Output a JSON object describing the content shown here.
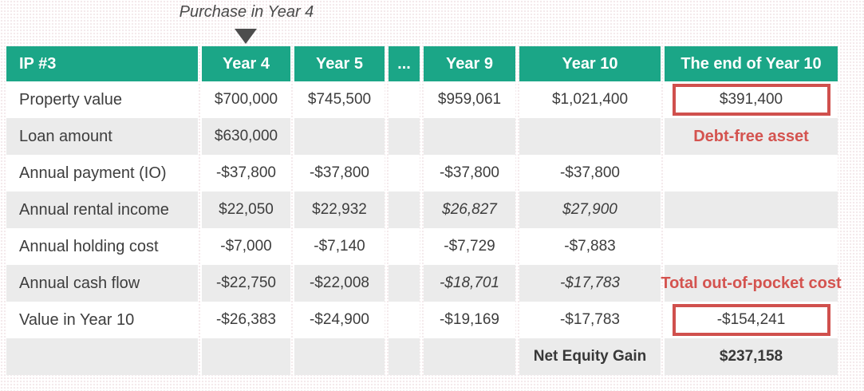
{
  "annotation": {
    "purchase_label": "Purchase in Year 4"
  },
  "callouts": {
    "debt_free_asset": "Debt-free asset",
    "total_out_of_pocket": "Total out-of-pocket cost"
  },
  "table": {
    "header": {
      "col0": "IP #3",
      "col1": "Year 4",
      "col2": "Year 5",
      "col3": "...",
      "col4": "Year 9",
      "col5": "Year 10",
      "col6": "The end of Year 10"
    },
    "rows": [
      {
        "label": "Property value",
        "y4": "$700,000",
        "y5": "$745,500",
        "dots": "",
        "y9": "$959,061",
        "y10": "$1,021,400",
        "end": "$391,400"
      },
      {
        "label": "Loan amount",
        "y4": "$630,000",
        "y5": "",
        "dots": "",
        "y9": "",
        "y10": "",
        "end": ""
      },
      {
        "label": "Annual payment (IO)",
        "y4": "-$37,800",
        "y5": "-$37,800",
        "dots": "",
        "y9": "-$37,800",
        "y10": "-$37,800",
        "end": ""
      },
      {
        "label": "Annual rental income",
        "y4": "$22,050",
        "y5": "$22,932",
        "dots": "",
        "y9": "$26,827",
        "y10": "$27,900",
        "end": ""
      },
      {
        "label": "Annual holding cost",
        "y4": "-$7,000",
        "y5": "-$7,140",
        "dots": "",
        "y9": "-$7,729",
        "y10": "-$7,883",
        "end": ""
      },
      {
        "label": "Annual cash flow",
        "y4": "-$22,750",
        "y5": "-$22,008",
        "dots": "",
        "y9": "-$18,701",
        "y10": "-$17,783",
        "end": ""
      },
      {
        "label": "Value in Year 10",
        "y4": "-$26,383",
        "y5": "-$24,900",
        "dots": "",
        "y9": "-$19,169",
        "y10": "-$17,783",
        "end": "-$154,241"
      },
      {
        "label": "",
        "y4": "",
        "y5": "",
        "dots": "",
        "y9": "",
        "y10": "Net Equity Gain",
        "end": "$237,158"
      }
    ]
  },
  "colors": {
    "header_teal": "#1ba687",
    "row_alt_gray": "#ebebeb",
    "accent_red": "#d0504d",
    "text_dark": "#3d3d3d"
  },
  "chart_data": {
    "type": "table",
    "title": "IP #3",
    "columns": [
      "IP #3",
      "Year 4",
      "Year 5",
      "...",
      "Year 9",
      "Year 10",
      "The end of Year 10"
    ],
    "rows": [
      [
        "Property value",
        700000,
        745500,
        null,
        959061,
        1021400,
        391400
      ],
      [
        "Loan amount",
        630000,
        null,
        null,
        null,
        null,
        null
      ],
      [
        "Annual payment (IO)",
        -37800,
        -37800,
        null,
        -37800,
        -37800,
        null
      ],
      [
        "Annual rental income",
        22050,
        22932,
        null,
        26827,
        27900,
        null
      ],
      [
        "Annual holding cost",
        -7000,
        -7140,
        null,
        -7729,
        -7883,
        null
      ],
      [
        "Annual cash flow",
        -22750,
        -22008,
        null,
        -18701,
        -17783,
        null
      ],
      [
        "Value in Year 10",
        -26383,
        -24900,
        null,
        -19169,
        -17783,
        -154241
      ],
      [
        "",
        null,
        null,
        null,
        null,
        "Net Equity Gain",
        237158
      ]
    ],
    "annotations": [
      "Purchase in Year 4 (arrow pointing at Year 4 column)",
      "Debt-free asset (red, under $391,400 box)",
      "Total out-of-pocket cost (red, above -$154,241 box)",
      "Red box around $391,400",
      "Red box around -$154,241"
    ],
    "notes": "Italic values in Year 9 and Year 10 for rental income and cash flow rows indicate projections"
  }
}
